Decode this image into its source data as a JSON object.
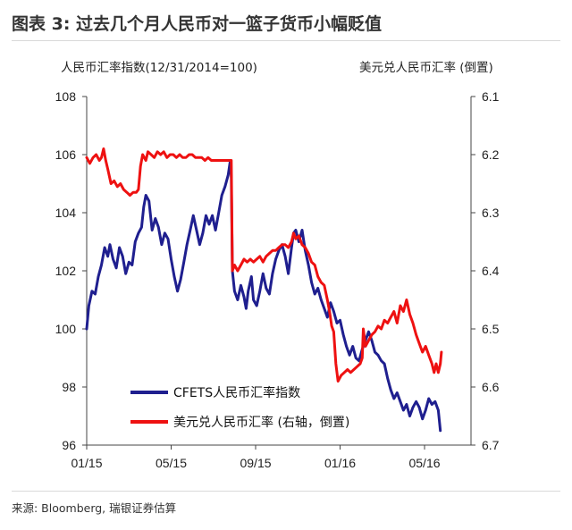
{
  "title": "图表 3: 过去几个月人民币对一篮子货币小幅贬值",
  "left_axis_caption": "人民币汇率指数(12/31/2014=100)",
  "right_axis_caption": "美元兑人民币汇率 (倒置)",
  "source": "来源: Bloomberg, 瑞银证券估算",
  "colors": {
    "cfets": "#1f1f8f",
    "usdcny": "#ee1111",
    "axis": "#444444"
  },
  "chart_data": {
    "type": "line",
    "title": "图表 3: 过去几个月人民币对一篮子货币小幅贬值",
    "x_ticks": [
      "01/15",
      "05/15",
      "09/15",
      "01/16",
      "05/16"
    ],
    "x_tick_month_index": [
      0,
      4,
      8,
      12,
      16
    ],
    "x_range_months": [
      0,
      18.2
    ],
    "y_left": {
      "label": "人民币汇率指数(12/31/2014=100)",
      "range": [
        96,
        108
      ],
      "ticks": [
        "96",
        "98",
        "100",
        "102",
        "104",
        "106",
        "108"
      ]
    },
    "y_right": {
      "label": "美元兑人民币汇率 (倒置)",
      "range": [
        6.1,
        6.7
      ],
      "inverted": true,
      "ticks": [
        "6.1",
        "6.2",
        "6.3",
        "6.4",
        "6.5",
        "6.6",
        "6.7"
      ]
    },
    "series": [
      {
        "name": "CFETS人民币汇率指数",
        "axis": "left",
        "points": [
          [
            0.0,
            100.0
          ],
          [
            0.1,
            100.8
          ],
          [
            0.25,
            101.3
          ],
          [
            0.4,
            101.2
          ],
          [
            0.55,
            101.8
          ],
          [
            0.7,
            102.2
          ],
          [
            0.85,
            102.8
          ],
          [
            1.0,
            102.5
          ],
          [
            1.1,
            102.9
          ],
          [
            1.25,
            102.4
          ],
          [
            1.4,
            102.1
          ],
          [
            1.55,
            102.8
          ],
          [
            1.7,
            102.5
          ],
          [
            1.85,
            101.9
          ],
          [
            2.0,
            102.3
          ],
          [
            2.15,
            102.2
          ],
          [
            2.3,
            103.0
          ],
          [
            2.45,
            103.3
          ],
          [
            2.6,
            103.5
          ],
          [
            2.7,
            104.2
          ],
          [
            2.8,
            104.6
          ],
          [
            2.95,
            104.4
          ],
          [
            3.1,
            103.4
          ],
          [
            3.25,
            103.8
          ],
          [
            3.4,
            103.5
          ],
          [
            3.55,
            102.9
          ],
          [
            3.7,
            103.3
          ],
          [
            3.85,
            103.1
          ],
          [
            4.0,
            102.4
          ],
          [
            4.15,
            101.8
          ],
          [
            4.3,
            101.3
          ],
          [
            4.45,
            101.7
          ],
          [
            4.6,
            102.3
          ],
          [
            4.75,
            102.9
          ],
          [
            4.9,
            103.4
          ],
          [
            5.05,
            103.9
          ],
          [
            5.2,
            103.4
          ],
          [
            5.35,
            102.9
          ],
          [
            5.5,
            103.3
          ],
          [
            5.65,
            103.9
          ],
          [
            5.8,
            103.6
          ],
          [
            5.95,
            103.9
          ],
          [
            6.1,
            103.4
          ],
          [
            6.25,
            104.0
          ],
          [
            6.4,
            104.6
          ],
          [
            6.55,
            104.9
          ],
          [
            6.7,
            105.3
          ],
          [
            6.8,
            105.8
          ],
          [
            6.85,
            105.2
          ],
          [
            6.9,
            102.0
          ],
          [
            7.0,
            101.3
          ],
          [
            7.15,
            101.0
          ],
          [
            7.3,
            101.5
          ],
          [
            7.45,
            101.1
          ],
          [
            7.55,
            100.7
          ],
          [
            7.65,
            101.3
          ],
          [
            7.8,
            101.8
          ],
          [
            7.9,
            101.0
          ],
          [
            8.05,
            100.8
          ],
          [
            8.2,
            101.3
          ],
          [
            8.35,
            101.9
          ],
          [
            8.5,
            101.4
          ],
          [
            8.65,
            101.2
          ],
          [
            8.8,
            101.9
          ],
          [
            8.95,
            102.4
          ],
          [
            9.1,
            102.7
          ],
          [
            9.25,
            102.9
          ],
          [
            9.4,
            102.5
          ],
          [
            9.55,
            101.9
          ],
          [
            9.7,
            102.8
          ],
          [
            9.8,
            103.3
          ],
          [
            9.9,
            103.4
          ],
          [
            10.05,
            103.0
          ],
          [
            10.2,
            103.4
          ],
          [
            10.35,
            102.7
          ],
          [
            10.5,
            102.2
          ],
          [
            10.65,
            101.6
          ],
          [
            10.8,
            101.2
          ],
          [
            10.95,
            101.4
          ],
          [
            11.1,
            101.0
          ],
          [
            11.25,
            100.7
          ],
          [
            11.4,
            100.4
          ],
          [
            11.55,
            100.9
          ],
          [
            11.7,
            100.6
          ],
          [
            11.85,
            100.2
          ],
          [
            12.0,
            100.3
          ],
          [
            12.15,
            99.8
          ],
          [
            12.3,
            99.4
          ],
          [
            12.45,
            99.1
          ],
          [
            12.6,
            99.4
          ],
          [
            12.75,
            99.0
          ],
          [
            12.9,
            98.9
          ],
          [
            13.05,
            99.3
          ],
          [
            13.2,
            99.6
          ],
          [
            13.35,
            99.9
          ],
          [
            13.5,
            99.6
          ],
          [
            13.65,
            99.2
          ],
          [
            13.8,
            99.1
          ],
          [
            13.95,
            98.9
          ],
          [
            14.1,
            98.8
          ],
          [
            14.25,
            98.3
          ],
          [
            14.4,
            97.9
          ],
          [
            14.55,
            97.6
          ],
          [
            14.7,
            97.8
          ],
          [
            14.85,
            97.5
          ],
          [
            15.0,
            97.2
          ],
          [
            15.15,
            97.4
          ],
          [
            15.3,
            97.0
          ],
          [
            15.45,
            97.3
          ],
          [
            15.6,
            97.5
          ],
          [
            15.75,
            97.3
          ],
          [
            15.9,
            96.9
          ],
          [
            16.05,
            97.2
          ],
          [
            16.2,
            97.6
          ],
          [
            16.35,
            97.4
          ],
          [
            16.5,
            97.5
          ],
          [
            16.65,
            97.2
          ],
          [
            16.75,
            96.5
          ]
        ]
      },
      {
        "name": "美元兑人民币汇率 (右轴，倒置)",
        "axis": "right",
        "points": [
          [
            0.0,
            6.205
          ],
          [
            0.15,
            6.215
          ],
          [
            0.3,
            6.205
          ],
          [
            0.45,
            6.2
          ],
          [
            0.6,
            6.21
          ],
          [
            0.7,
            6.205
          ],
          [
            0.8,
            6.19
          ],
          [
            0.9,
            6.21
          ],
          [
            1.0,
            6.225
          ],
          [
            1.15,
            6.25
          ],
          [
            1.3,
            6.245
          ],
          [
            1.45,
            6.255
          ],
          [
            1.6,
            6.25
          ],
          [
            1.75,
            6.26
          ],
          [
            1.9,
            6.265
          ],
          [
            2.05,
            6.27
          ],
          [
            2.2,
            6.265
          ],
          [
            2.35,
            6.265
          ],
          [
            2.45,
            6.26
          ],
          [
            2.55,
            6.22
          ],
          [
            2.65,
            6.2
          ],
          [
            2.8,
            6.21
          ],
          [
            2.9,
            6.195
          ],
          [
            3.05,
            6.2
          ],
          [
            3.2,
            6.205
          ],
          [
            3.35,
            6.195
          ],
          [
            3.5,
            6.2
          ],
          [
            3.65,
            6.195
          ],
          [
            3.8,
            6.205
          ],
          [
            3.95,
            6.2
          ],
          [
            4.1,
            6.2
          ],
          [
            4.25,
            6.205
          ],
          [
            4.4,
            6.2
          ],
          [
            4.55,
            6.205
          ],
          [
            4.7,
            6.205
          ],
          [
            4.85,
            6.2
          ],
          [
            5.0,
            6.2
          ],
          [
            5.15,
            6.205
          ],
          [
            5.3,
            6.205
          ],
          [
            5.45,
            6.205
          ],
          [
            5.6,
            6.21
          ],
          [
            5.75,
            6.205
          ],
          [
            5.9,
            6.21
          ],
          [
            6.05,
            6.21
          ],
          [
            6.2,
            6.21
          ],
          [
            6.35,
            6.21
          ],
          [
            6.5,
            6.21
          ],
          [
            6.65,
            6.21
          ],
          [
            6.8,
            6.21
          ],
          [
            6.85,
            6.21
          ],
          [
            6.9,
            6.4
          ],
          [
            7.0,
            6.39
          ],
          [
            7.15,
            6.4
          ],
          [
            7.3,
            6.39
          ],
          [
            7.45,
            6.38
          ],
          [
            7.6,
            6.385
          ],
          [
            7.75,
            6.38
          ],
          [
            7.9,
            6.385
          ],
          [
            8.05,
            6.38
          ],
          [
            8.2,
            6.375
          ],
          [
            8.35,
            6.385
          ],
          [
            8.5,
            6.375
          ],
          [
            8.65,
            6.37
          ],
          [
            8.8,
            6.365
          ],
          [
            8.95,
            6.365
          ],
          [
            9.1,
            6.36
          ],
          [
            9.25,
            6.355
          ],
          [
            9.4,
            6.355
          ],
          [
            9.55,
            6.36
          ],
          [
            9.7,
            6.35
          ],
          [
            9.8,
            6.335
          ],
          [
            9.9,
            6.345
          ],
          [
            10.05,
            6.34
          ],
          [
            10.2,
            6.355
          ],
          [
            10.35,
            6.36
          ],
          [
            10.5,
            6.37
          ],
          [
            10.65,
            6.385
          ],
          [
            10.8,
            6.39
          ],
          [
            10.95,
            6.41
          ],
          [
            11.1,
            6.42
          ],
          [
            11.25,
            6.425
          ],
          [
            11.4,
            6.45
          ],
          [
            11.5,
            6.47
          ],
          [
            11.6,
            6.495
          ],
          [
            11.7,
            6.505
          ],
          [
            11.8,
            6.56
          ],
          [
            11.9,
            6.59
          ],
          [
            12.05,
            6.58
          ],
          [
            12.2,
            6.575
          ],
          [
            12.35,
            6.57
          ],
          [
            12.5,
            6.575
          ],
          [
            12.65,
            6.57
          ],
          [
            12.8,
            6.565
          ],
          [
            12.95,
            6.56
          ],
          [
            13.05,
            6.55
          ],
          [
            13.1,
            6.5
          ],
          [
            13.2,
            6.53
          ],
          [
            13.35,
            6.52
          ],
          [
            13.5,
            6.51
          ],
          [
            13.65,
            6.505
          ],
          [
            13.8,
            6.495
          ],
          [
            13.95,
            6.5
          ],
          [
            14.1,
            6.485
          ],
          [
            14.25,
            6.49
          ],
          [
            14.4,
            6.48
          ],
          [
            14.55,
            6.47
          ],
          [
            14.7,
            6.49
          ],
          [
            14.85,
            6.46
          ],
          [
            15.0,
            6.47
          ],
          [
            15.15,
            6.45
          ],
          [
            15.3,
            6.475
          ],
          [
            15.45,
            6.49
          ],
          [
            15.6,
            6.51
          ],
          [
            15.75,
            6.525
          ],
          [
            15.9,
            6.54
          ],
          [
            16.05,
            6.53
          ],
          [
            16.2,
            6.545
          ],
          [
            16.35,
            6.56
          ],
          [
            16.45,
            6.575
          ],
          [
            16.55,
            6.56
          ],
          [
            16.65,
            6.575
          ],
          [
            16.75,
            6.56
          ],
          [
            16.8,
            6.54
          ]
        ]
      }
    ],
    "legend_placement": "bottom-center",
    "grid": false
  }
}
